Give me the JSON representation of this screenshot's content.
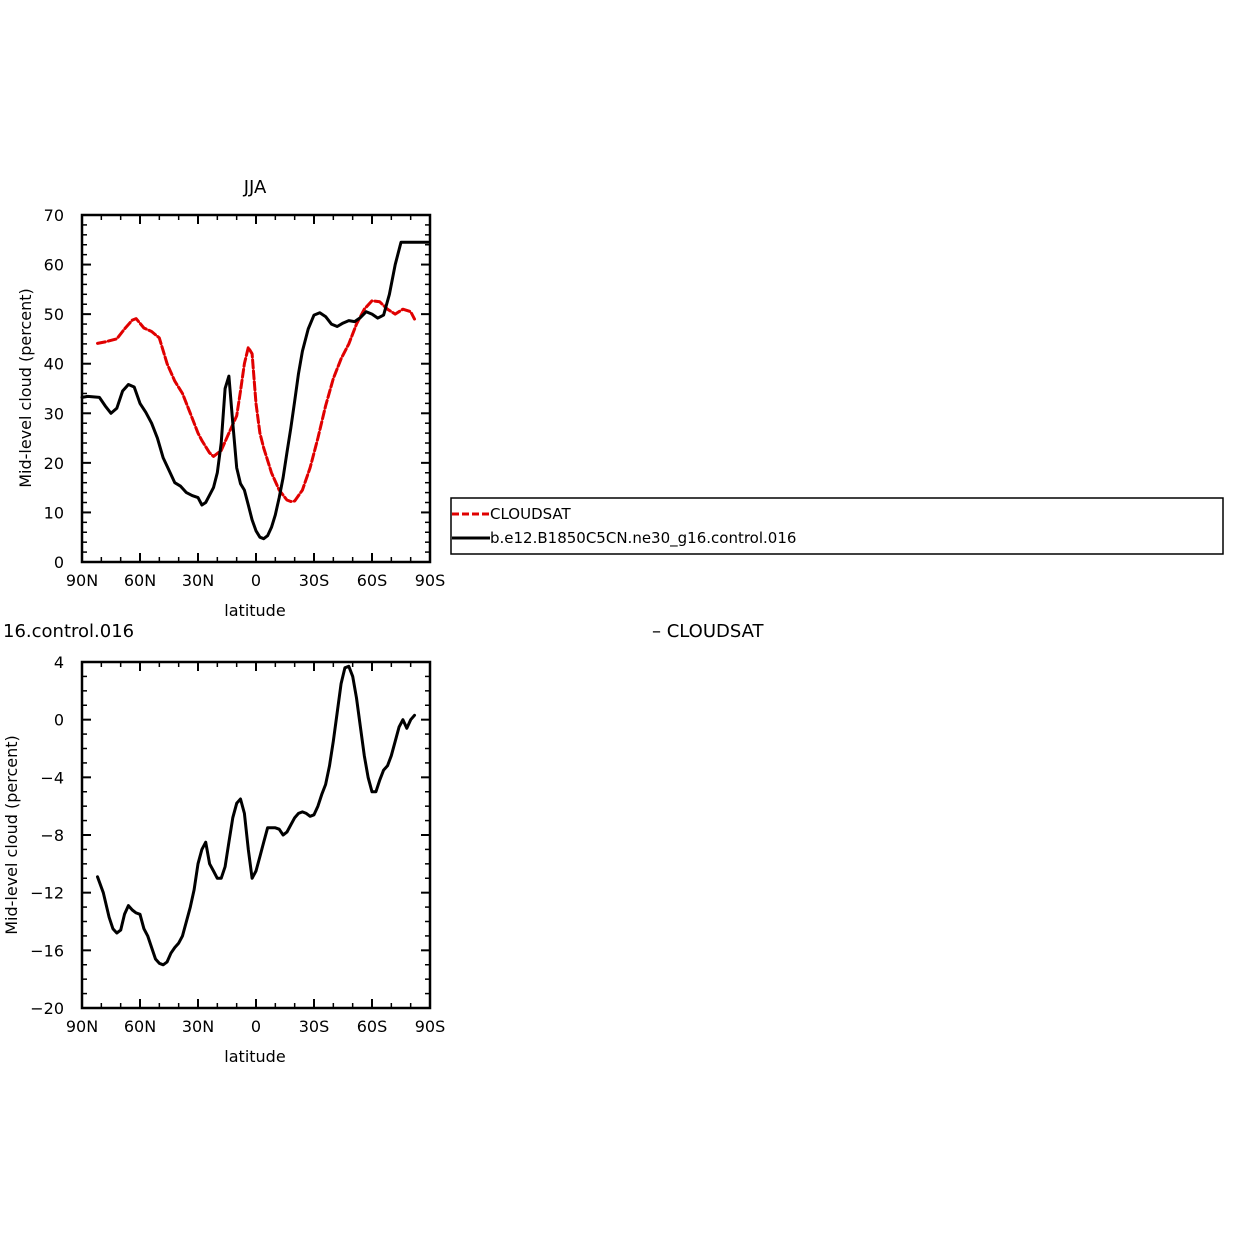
{
  "chart_data": [
    {
      "type": "line",
      "title": "JJA",
      "xlabel": "latitude",
      "ylabel": "Mid-level cloud (percent)",
      "xlim": [
        90,
        -90
      ],
      "ylim": [
        0,
        70
      ],
      "x_ticks": [
        90,
        60,
        30,
        0,
        -30,
        -60,
        -90
      ],
      "x_tick_labels": [
        "90N",
        "60N",
        "30N",
        "0",
        "30S",
        "60S",
        "90S"
      ],
      "y_ticks": [
        0,
        10,
        20,
        30,
        40,
        50,
        60,
        70
      ],
      "y_tick_labels": [
        "0",
        "10",
        "20",
        "30",
        "40",
        "50",
        "60",
        "70"
      ],
      "legend": {
        "placement": "right",
        "entries": [
          "CLOUDSAT",
          "b.e12.B1850C5CN.ne30_g16.control.016"
        ]
      },
      "series": [
        {
          "name": "CLOUDSAT",
          "color": "#e00000",
          "style": "dashed",
          "x": [
            82,
            78,
            72,
            68,
            64,
            62,
            58,
            54,
            50,
            46,
            42,
            38,
            34,
            30,
            28,
            24,
            22,
            18,
            14,
            10,
            8,
            6,
            4,
            2,
            0,
            -2,
            -4,
            -8,
            -12,
            -16,
            -18,
            -20,
            -24,
            -28,
            -32,
            -36,
            -40,
            -44,
            -48,
            -52,
            -56,
            -60,
            -64,
            -68,
            -72,
            -76,
            -80,
            -82
          ],
          "y": [
            44.1,
            44.4,
            45,
            47,
            48.8,
            49.1,
            47.2,
            46.5,
            45.2,
            40,
            36.5,
            34,
            30,
            26,
            24.5,
            22,
            21.3,
            22.5,
            26,
            29.5,
            34.5,
            40,
            43.3,
            42,
            32,
            26,
            23,
            18,
            14.5,
            12.5,
            12.2,
            12.3,
            14.5,
            19,
            25,
            31.5,
            37,
            41,
            44,
            48,
            51,
            52.7,
            52.5,
            51,
            50,
            51,
            50.5,
            49
          ]
        },
        {
          "name": "b.e12.B1850C5CN.ne30_g16.control.016",
          "color": "#000000",
          "style": "solid",
          "x": [
            90,
            87,
            84,
            81,
            78,
            75,
            72,
            69,
            66,
            63,
            60,
            57,
            54,
            51,
            48,
            45,
            42,
            39,
            36,
            33,
            30,
            28,
            26,
            24,
            22,
            20,
            18,
            16,
            14,
            12,
            10,
            8,
            6,
            4,
            2,
            0,
            -2,
            -4,
            -6,
            -8,
            -10,
            -12,
            -14,
            -16,
            -18,
            -20,
            -22,
            -24,
            -27,
            -30,
            -33,
            -36,
            -39,
            -42,
            -45,
            -48,
            -51,
            -54,
            -57,
            -60,
            -63,
            -66,
            -69,
            -72,
            -75,
            -78,
            -81,
            -84,
            -87,
            -89
          ],
          "y": [
            33.2,
            33.4,
            33.3,
            33.2,
            31.5,
            30,
            31,
            34.5,
            35.8,
            35.3,
            32,
            30.2,
            28,
            25,
            21,
            18.5,
            16,
            15.3,
            14,
            13.4,
            13,
            11.5,
            12,
            13.5,
            15,
            18,
            24,
            35,
            37.5,
            28,
            19,
            15.8,
            14.5,
            11.5,
            8.5,
            6.3,
            5,
            4.7,
            5.3,
            7,
            9.5,
            13,
            17,
            22,
            27,
            32.5,
            38,
            42.5,
            47,
            49.8,
            50.3,
            49.5,
            48,
            47.5,
            48.2,
            48.7,
            48.5,
            49.3,
            50.5,
            50,
            49.2,
            49.8,
            54,
            60,
            64.5,
            64.5,
            64.5,
            64.5,
            64.5,
            64.5
          ]
        }
      ]
    },
    {
      "type": "line",
      "title": "16.control.016",
      "title_right": "– CLOUDSAT",
      "xlabel": "latitude",
      "ylabel": "Mid-level cloud (percent)",
      "xlim": [
        90,
        -90
      ],
      "ylim": [
        -20,
        4
      ],
      "x_ticks": [
        90,
        60,
        30,
        0,
        -30,
        -60,
        -90
      ],
      "x_tick_labels": [
        "90N",
        "60N",
        "30N",
        "0",
        "30S",
        "60S",
        "90S"
      ],
      "y_ticks": [
        -20,
        -16,
        -12,
        -8,
        -4,
        0,
        4
      ],
      "y_tick_labels": [
        "−20",
        "−16",
        "−12",
        "−8",
        "−4",
        "0",
        "4"
      ],
      "series": [
        {
          "color": "#000000",
          "style": "solid",
          "x": [
            82,
            79,
            76,
            74,
            72,
            70,
            68,
            66,
            64,
            62,
            60,
            58,
            56,
            54,
            52,
            50,
            48,
            46,
            44,
            42,
            40,
            38,
            36,
            34,
            32,
            30,
            28,
            26,
            24,
            22,
            20,
            18,
            16,
            14,
            12,
            10,
            8,
            6,
            4,
            2,
            0,
            -2,
            -4,
            -6,
            -8,
            -10,
            -12,
            -14,
            -16,
            -18,
            -20,
            -22,
            -24,
            -26,
            -28,
            -30,
            -32,
            -34,
            -36,
            -38,
            -40,
            -42,
            -44,
            -46,
            -48,
            -50,
            -52,
            -54,
            -56,
            -58,
            -60,
            -62,
            -64,
            -66,
            -68,
            -70,
            -72,
            -74,
            -76,
            -78,
            -80,
            -82
          ],
          "y": [
            -10.9,
            -12,
            -13.7,
            -14.5,
            -14.8,
            -14.6,
            -13.5,
            -12.9,
            -13.2,
            -13.4,
            -13.5,
            -14.5,
            -15,
            -15.8,
            -16.6,
            -16.9,
            -17,
            -16.8,
            -16.2,
            -15.8,
            -15.5,
            -15,
            -14,
            -13,
            -11.8,
            -10,
            -9,
            -8.5,
            -10,
            -10.5,
            -11,
            -11,
            -10.2,
            -8.5,
            -6.8,
            -5.8,
            -5.5,
            -6.5,
            -9,
            -11,
            -10.5,
            -9.5,
            -8.5,
            -7.5,
            -7.5,
            -7.5,
            -7.6,
            -8,
            -7.8,
            -7.3,
            -6.8,
            -6.5,
            -6.4,
            -6.5,
            -6.7,
            -6.6,
            -6,
            -5.2,
            -4.5,
            -3.2,
            -1.5,
            0.5,
            2.5,
            3.6,
            3.7,
            3,
            1.5,
            -0.5,
            -2.5,
            -4,
            -5,
            -5,
            -4.2,
            -3.5,
            -3.2,
            -2.5,
            -1.5,
            -0.5,
            0,
            -0.6,
            0,
            0.3
          ]
        }
      ]
    }
  ]
}
